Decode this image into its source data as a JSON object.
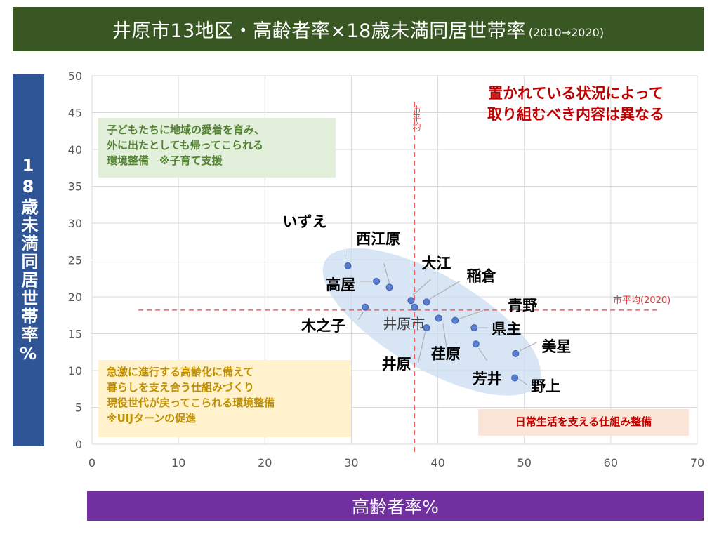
{
  "title": {
    "main": "井原市13地区・高齢者率×18歳未満同居世帯率",
    "range": "(2010→2020)"
  },
  "chart_data": {
    "type": "scatter",
    "xlabel": "高齢者率%",
    "ylabel": "18歳未満同居世帯率%",
    "xlim": [
      0,
      70
    ],
    "ylim": [
      0,
      50
    ],
    "x_ticks": [
      0,
      10,
      20,
      30,
      40,
      50,
      60,
      70
    ],
    "y_ticks": [
      0,
      5,
      10,
      15,
      20,
      25,
      30,
      35,
      40,
      45,
      50
    ],
    "grid": true,
    "reference_lines": {
      "vertical": {
        "label": "市平均",
        "x": 37.3
      },
      "horizontal": {
        "label": "市平均(2020)",
        "y": 18.2
      }
    },
    "points": [
      {
        "name": "いずえ",
        "x": 29.6,
        "y": 24.2
      },
      {
        "name": "西江原",
        "x": 34.4,
        "y": 21.3
      },
      {
        "name": "高屋",
        "x": 32.9,
        "y": 22.1
      },
      {
        "name": "大江",
        "x": 36.9,
        "y": 19.5
      },
      {
        "name": "稲倉",
        "x": 38.7,
        "y": 19.3
      },
      {
        "name": "木之子",
        "x": 31.6,
        "y": 18.6
      },
      {
        "name": "井原市",
        "x": 37.3,
        "y": 18.6
      },
      {
        "name": "青野",
        "x": 42.0,
        "y": 16.8
      },
      {
        "name": "井原",
        "x": 38.7,
        "y": 15.8
      },
      {
        "name": "荏原",
        "x": 40.1,
        "y": 17.1
      },
      {
        "name": "県主",
        "x": 44.2,
        "y": 15.8
      },
      {
        "name": "美星",
        "x": 49.0,
        "y": 12.3
      },
      {
        "name": "芳井",
        "x": 44.4,
        "y": 13.6
      },
      {
        "name": "野上",
        "x": 48.9,
        "y": 9.0
      }
    ]
  },
  "notes": {
    "green": [
      "子どもたちに地域の愛着を育み、",
      "外に出たとしても帰ってこられる",
      "環境整備　※子育て支援"
    ],
    "yellow": [
      "急激に進行する高齢化に備えて",
      "暮らしを支え合う仕組みづくり",
      "現役世代が戻ってこられる環境整備",
      "※UIJターンの促進"
    ],
    "orange": "日常生活を支える仕組み整備"
  },
  "headline": [
    "置かれている状況によって",
    "取り組むべき内容は異なる"
  ],
  "colors": {
    "title_bg": "#385723",
    "ylabel_bg": "#2f5597",
    "xlabel_bg": "#7030a0",
    "point": "#5b7fd0",
    "ellipse": "#c9dcf0",
    "refline": "#ff5a5a"
  }
}
